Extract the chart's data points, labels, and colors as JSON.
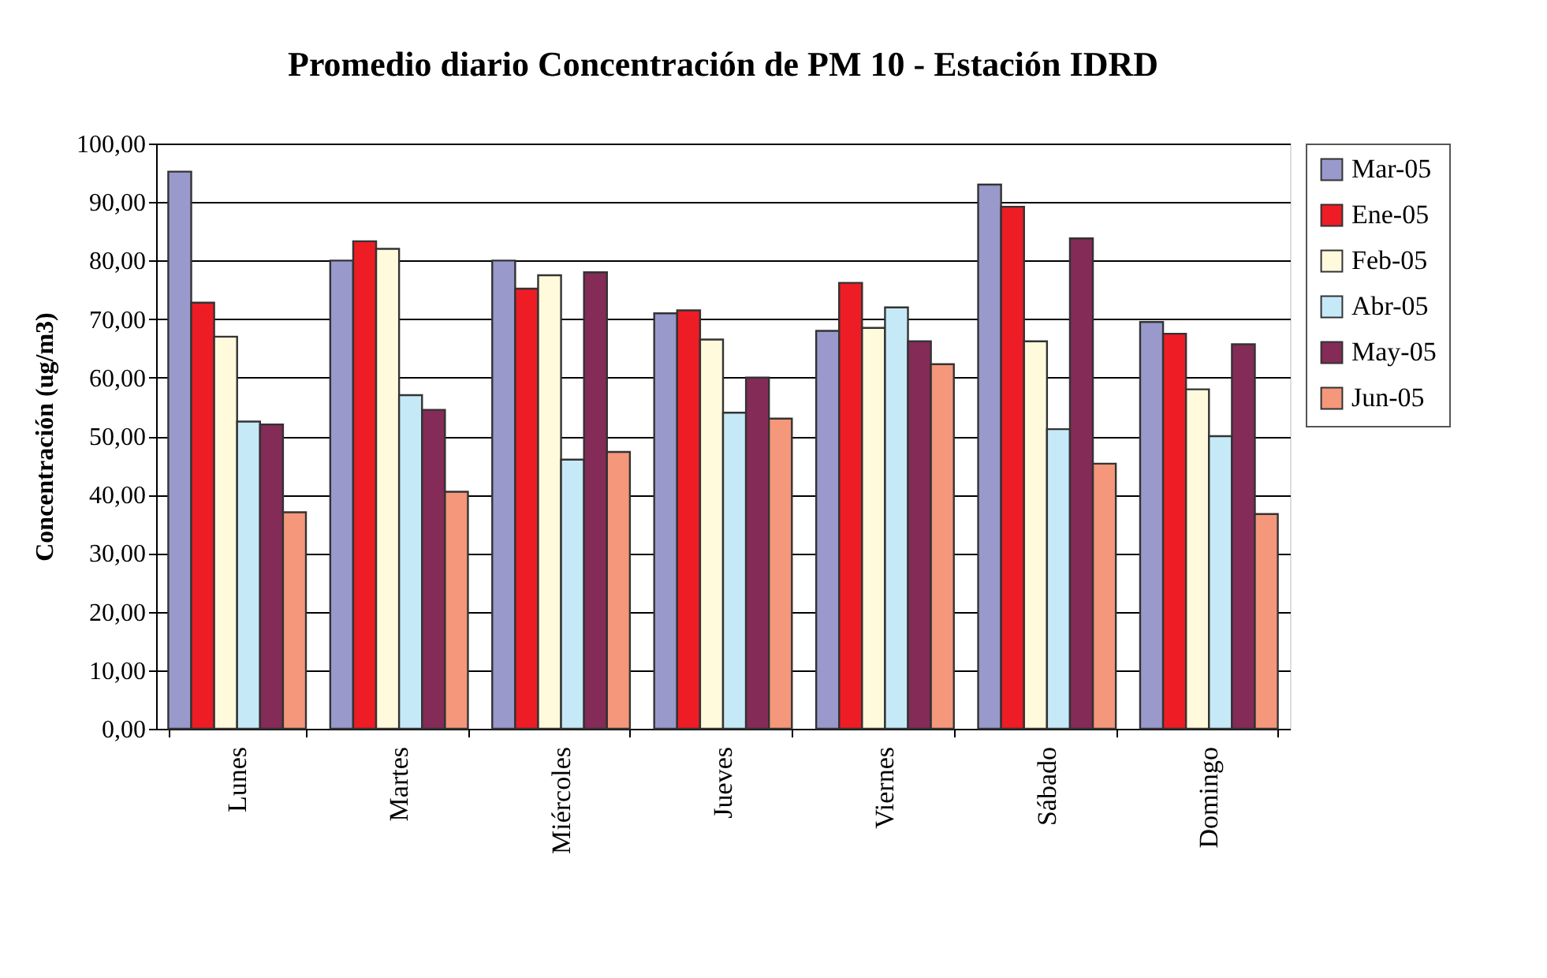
{
  "chart_data": {
    "type": "bar",
    "title": "Promedio diario Concentración de PM 10 - Estación IDRD",
    "ylabel": "Concentración (ug/m3)",
    "categories": [
      "Lunes",
      "Martes",
      "Miércoles",
      "Jueves",
      "Viernes",
      "Sábado",
      "Domingo"
    ],
    "series": [
      {
        "name": "Mar-05",
        "color": "#9999cc",
        "values": [
          95.2,
          80,
          80,
          71,
          68,
          93,
          69.5
        ]
      },
      {
        "name": "Ene-05",
        "color": "#ee1c25",
        "values": [
          72.8,
          83.3,
          75.2,
          71.5,
          76.2,
          89.2,
          67.5
        ]
      },
      {
        "name": "Feb-05",
        "color": "#fffadc",
        "values": [
          67,
          82,
          77.5,
          66.5,
          68.5,
          66.2,
          58
        ]
      },
      {
        "name": "Abr-05",
        "color": "#c6e9f8",
        "values": [
          52.5,
          57,
          46,
          54,
          72,
          51.2,
          50
        ]
      },
      {
        "name": "May-05",
        "color": "#842b57",
        "values": [
          52,
          54.5,
          78,
          60,
          66.2,
          83.8,
          65.7
        ]
      },
      {
        "name": "Jun-05",
        "color": "#f5977a",
        "values": [
          37,
          40.5,
          47.3,
          53,
          62.3,
          45.3,
          36.7
        ]
      }
    ],
    "ylim": [
      0,
      100
    ],
    "yticks": [
      {
        "value": 0,
        "label": "0,00"
      },
      {
        "value": 10,
        "label": "10,00"
      },
      {
        "value": 20,
        "label": "20,00"
      },
      {
        "value": 30,
        "label": "30,00"
      },
      {
        "value": 40,
        "label": "40,00"
      },
      {
        "value": 50,
        "label": "50,00"
      },
      {
        "value": 60,
        "label": "60,00"
      },
      {
        "value": 70,
        "label": "70,00"
      },
      {
        "value": 80,
        "label": "80,00"
      },
      {
        "value": 90,
        "label": "90,00"
      },
      {
        "value": 100,
        "label": "100,00"
      }
    ],
    "grid": "y",
    "legend": "right"
  }
}
